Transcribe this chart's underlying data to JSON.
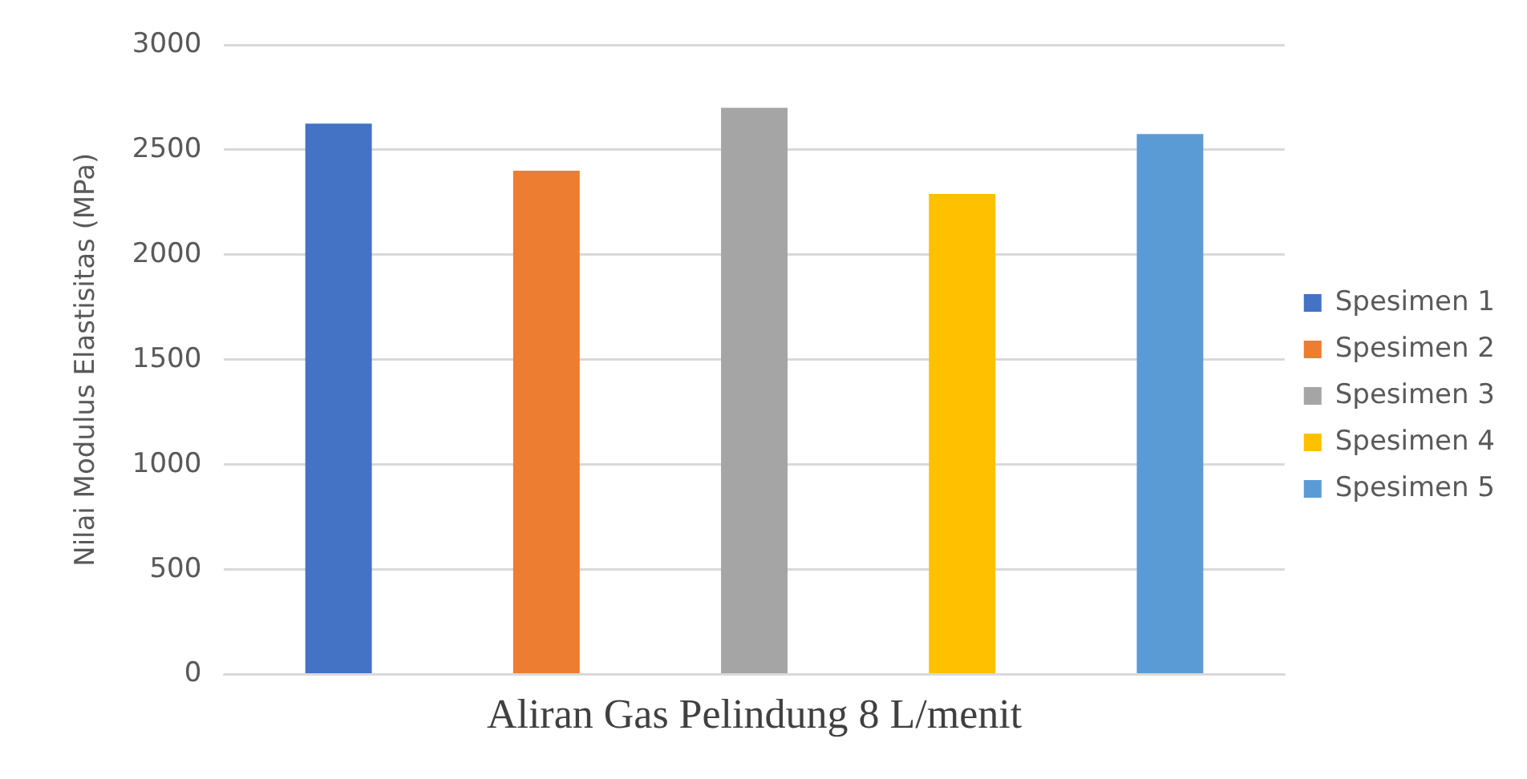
{
  "chart_data": {
    "type": "bar",
    "ylabel": "Nilai Modulus Elastisitas (MPa)",
    "categories": [
      "Aliran Gas Pelindung 8 L/menit"
    ],
    "series": [
      {
        "name": "Spesimen 1",
        "color": "#4472c4",
        "values": [
          2625
        ]
      },
      {
        "name": "Spesimen 2",
        "color": "#ed7d31",
        "values": [
          2400
        ]
      },
      {
        "name": "Spesimen 3",
        "color": "#a5a5a5",
        "values": [
          2700
        ]
      },
      {
        "name": "Spesimen 4",
        "color": "#ffc000",
        "values": [
          2290
        ]
      },
      {
        "name": "Spesimen 5",
        "color": "#5b9bd5",
        "values": [
          2575
        ]
      }
    ],
    "ylim": [
      0,
      3000
    ],
    "yticks": [
      0,
      500,
      1000,
      1500,
      2000,
      2500,
      3000
    ],
    "grid": "y",
    "legend": "right"
  }
}
